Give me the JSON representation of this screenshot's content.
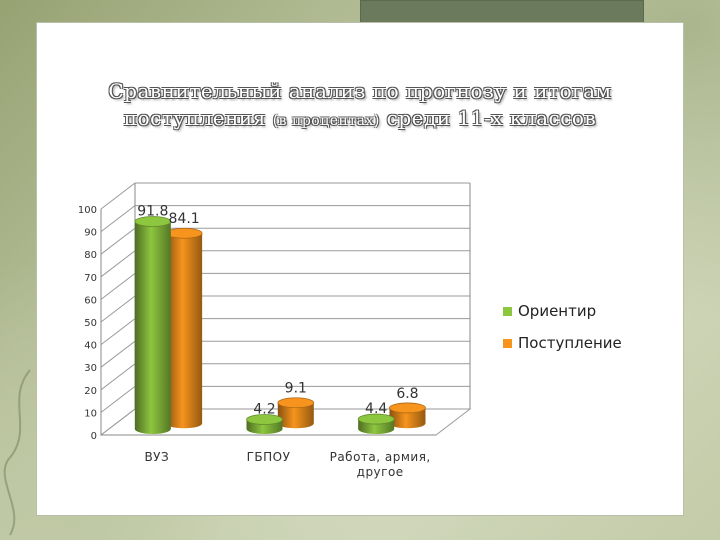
{
  "title": {
    "line1": "Сравнительный анализ по прогнозу и итогам",
    "line2_main_a": "поступления",
    "line2_small": "(в процентах)",
    "line2_main_b": "среди 11-х классов"
  },
  "colors": {
    "series1": "#8dc63f",
    "series2": "#f7941d"
  },
  "chart_data": {
    "type": "bar",
    "style": "3d-cylinder",
    "categories": [
      "ВУЗ",
      "ГБПОУ",
      "Работа, армия, другое"
    ],
    "series": [
      {
        "name": "Ориентир",
        "values": [
          91.8,
          4.2,
          4.4
        ]
      },
      {
        "name": "Поступление",
        "values": [
          84.1,
          9.1,
          6.8
        ]
      }
    ],
    "ylim": [
      0,
      100
    ],
    "yticks": [
      0,
      10,
      20,
      30,
      40,
      50,
      60,
      70,
      80,
      90,
      100
    ],
    "data_labels": [
      "91.8",
      "84.1",
      "4.2",
      "9.1",
      "4.4",
      "6.8"
    ],
    "legend": "right",
    "grid": true
  }
}
